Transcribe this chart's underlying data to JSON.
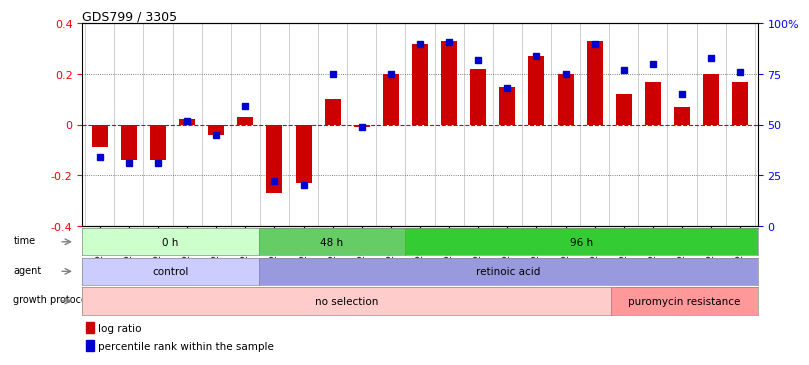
{
  "title": "GDS799 / 3305",
  "samples": [
    "GSM25978",
    "GSM25979",
    "GSM26006",
    "GSM26007",
    "GSM26008",
    "GSM26009",
    "GSM26010",
    "GSM26011",
    "GSM26012",
    "GSM26013",
    "GSM26014",
    "GSM26015",
    "GSM26016",
    "GSM26017",
    "GSM26018",
    "GSM26019",
    "GSM26020",
    "GSM26021",
    "GSM26022",
    "GSM26023",
    "GSM26024",
    "GSM26025",
    "GSM26026"
  ],
  "log_ratio": [
    -0.09,
    -0.14,
    -0.14,
    0.02,
    -0.04,
    0.03,
    -0.27,
    -0.23,
    0.1,
    -0.01,
    0.2,
    0.32,
    0.33,
    0.22,
    0.15,
    0.27,
    0.2,
    0.33,
    0.12,
    0.17,
    0.07,
    0.2,
    0.17
  ],
  "percentile": [
    34,
    31,
    31,
    52,
    45,
    59,
    22,
    20,
    75,
    49,
    75,
    90,
    91,
    82,
    68,
    84,
    75,
    90,
    77,
    80,
    65,
    83,
    76
  ],
  "bar_color": "#cc0000",
  "point_color": "#0000cc",
  "zero_line_color": "#cc0000",
  "dotted_line_color": "#555555",
  "time_groups": [
    {
      "label": "0 h",
      "start": 0,
      "end": 5,
      "color": "#ccffcc"
    },
    {
      "label": "48 h",
      "start": 6,
      "end": 10,
      "color": "#66cc66"
    },
    {
      "label": "96 h",
      "start": 11,
      "end": 22,
      "color": "#33cc33"
    }
  ],
  "agent_groups": [
    {
      "label": "control",
      "start": 0,
      "end": 5,
      "color": "#ccccff"
    },
    {
      "label": "retinoic acid",
      "start": 6,
      "end": 22,
      "color": "#9999dd"
    }
  ],
  "growth_groups": [
    {
      "label": "no selection",
      "start": 0,
      "end": 17,
      "color": "#ffcccc"
    },
    {
      "label": "puromycin resistance",
      "start": 18,
      "end": 22,
      "color": "#ff9999"
    }
  ]
}
